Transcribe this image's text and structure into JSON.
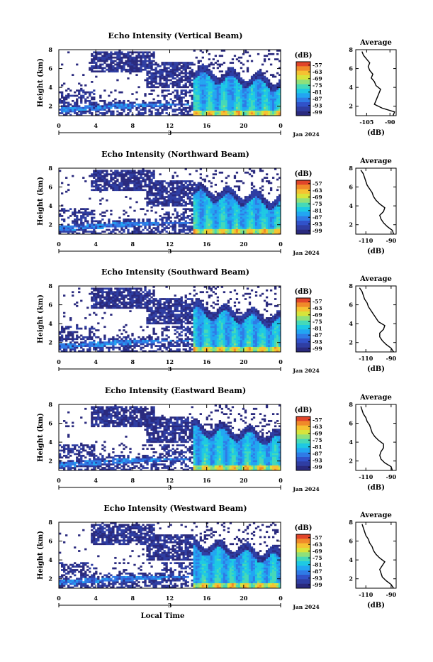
{
  "page": {
    "xlabel": "Local Time"
  },
  "colorbar": {
    "unit": "(dB)",
    "ticks": [
      "-57",
      "-63",
      "-69",
      "-75",
      "-81",
      "-87",
      "-93",
      "-99"
    ],
    "colors": [
      "#2a2a7e",
      "#2f3ea3",
      "#3152c9",
      "#2f7be6",
      "#22a6f2",
      "#1ec9e3",
      "#45d9b8",
      "#8fe07a",
      "#d7e43b",
      "#f5c232",
      "#f08a2a",
      "#e1452a"
    ]
  },
  "chart_data": [
    {
      "type": "heatmap",
      "title": "Echo Intensity (Vertical Beam)",
      "ylabel": "Height (km)",
      "xlim": [
        0,
        24
      ],
      "ylim": [
        1,
        8
      ],
      "xticks": [
        "0",
        "4",
        "8",
        "12",
        "16",
        "20",
        "0"
      ],
      "yticks": [
        "2",
        "4",
        "6",
        "8"
      ],
      "date_marker": "3",
      "date_label": "Jan 2024",
      "colorbar_range_db": [
        -99,
        -57
      ],
      "average": {
        "title": "Average",
        "xlabel": "(dB)",
        "xticks": [
          "-105",
          "-90"
        ],
        "xlim": [
          -112,
          -86
        ],
        "yticks": [
          "2",
          "4",
          "6",
          "8"
        ],
        "ylim": [
          1,
          8
        ],
        "height_km": [
          1.0,
          1.4,
          1.8,
          2.2,
          2.6,
          3.0,
          3.4,
          3.8,
          4.2,
          4.6,
          5.0,
          5.4,
          5.8,
          6.2,
          6.6,
          7.0,
          7.4,
          7.8
        ],
        "db": [
          -88,
          -87,
          -95,
          -100,
          -99,
          -98,
          -97,
          -96,
          -99,
          -100,
          -102,
          -101,
          -103,
          -104,
          -103,
          -105,
          -107,
          -108
        ]
      }
    },
    {
      "type": "heatmap",
      "title": "Echo Intensity (Northward Beam)",
      "ylabel": "Height (km)",
      "xlim": [
        0,
        24
      ],
      "ylim": [
        1,
        8
      ],
      "xticks": [
        "0",
        "4",
        "8",
        "12",
        "16",
        "20",
        "0"
      ],
      "yticks": [
        "2",
        "4",
        "6",
        "8"
      ],
      "date_marker": "3",
      "date_label": "Jan 2024",
      "colorbar_range_db": [
        -99,
        -57
      ],
      "average": {
        "title": "Average",
        "xlabel": "(dB)",
        "xticks": [
          "-110",
          "-90"
        ],
        "xlim": [
          -118,
          -86
        ],
        "yticks": [
          "2",
          "4",
          "6",
          "8"
        ],
        "ylim": [
          1,
          8
        ],
        "height_km": [
          1.0,
          1.4,
          1.8,
          2.2,
          2.6,
          3.0,
          3.4,
          3.8,
          4.2,
          4.6,
          5.0,
          5.4,
          5.8,
          6.2,
          6.6,
          7.0,
          7.4,
          7.8
        ],
        "db": [
          -88,
          -89,
          -93,
          -96,
          -98,
          -99,
          -96,
          -95,
          -99,
          -102,
          -104,
          -105,
          -107,
          -109,
          -110,
          -111,
          -112,
          -114
        ]
      }
    },
    {
      "type": "heatmap",
      "title": "Echo Intensity (Southward Beam)",
      "ylabel": "Height (km)",
      "xlim": [
        0,
        24
      ],
      "ylim": [
        1,
        8
      ],
      "xticks": [
        "0",
        "4",
        "8",
        "12",
        "16",
        "20",
        "0"
      ],
      "yticks": [
        "2",
        "4",
        "6",
        "8"
      ],
      "date_marker": "3",
      "date_label": "Jan 2024",
      "colorbar_range_db": [
        -99,
        -57
      ],
      "average": {
        "title": "Average",
        "xlabel": "(dB)",
        "xticks": [
          "-110",
          "-90"
        ],
        "xlim": [
          -118,
          -86
        ],
        "yticks": [
          "2",
          "4",
          "6",
          "8"
        ],
        "ylim": [
          1,
          8
        ],
        "height_km": [
          1.0,
          1.4,
          1.8,
          2.2,
          2.6,
          3.0,
          3.4,
          3.8,
          4.2,
          4.6,
          5.0,
          5.4,
          5.8,
          6.2,
          6.6,
          7.0,
          7.4,
          7.8
        ],
        "db": [
          -88,
          -90,
          -94,
          -97,
          -99,
          -99,
          -96,
          -95,
          -100,
          -102,
          -104,
          -106,
          -108,
          -109,
          -111,
          -112,
          -113,
          -115
        ]
      }
    },
    {
      "type": "heatmap",
      "title": "Echo Intensity (Eastward Beam)",
      "ylabel": "Height (km)",
      "xlim": [
        0,
        24
      ],
      "ylim": [
        1,
        8
      ],
      "xticks": [
        "0",
        "4",
        "8",
        "12",
        "16",
        "20",
        "0"
      ],
      "yticks": [
        "2",
        "4",
        "6",
        "8"
      ],
      "date_marker": "3",
      "date_label": "Jan 2024",
      "colorbar_range_db": [
        -99,
        -57
      ],
      "average": {
        "title": "Average",
        "xlabel": "(dB)",
        "xticks": [
          "-110",
          "-90"
        ],
        "xlim": [
          -118,
          -86
        ],
        "yticks": [
          "2",
          "4",
          "6",
          "8"
        ],
        "ylim": [
          1,
          8
        ],
        "height_km": [
          1.0,
          1.4,
          1.8,
          2.2,
          2.6,
          3.0,
          3.4,
          3.8,
          4.2,
          4.6,
          5.0,
          5.4,
          5.8,
          6.2,
          6.6,
          7.0,
          7.4,
          7.8
        ],
        "db": [
          -89,
          -90,
          -95,
          -98,
          -99,
          -98,
          -96,
          -96,
          -100,
          -103,
          -105,
          -106,
          -107,
          -109,
          -110,
          -112,
          -113,
          -114
        ]
      }
    },
    {
      "type": "heatmap",
      "title": "Echo Intensity (Westward Beam)",
      "ylabel": "Height (km)",
      "xlim": [
        0,
        24
      ],
      "ylim": [
        1,
        8
      ],
      "xticks": [
        "0",
        "4",
        "8",
        "12",
        "16",
        "20",
        "0"
      ],
      "yticks": [
        "2",
        "4",
        "6",
        "8"
      ],
      "date_marker": "3",
      "date_label": "Jan 2024",
      "colorbar_range_db": [
        -99,
        -57
      ],
      "average": {
        "title": "Average",
        "xlabel": "(dB)",
        "xticks": [
          "-110",
          "-90"
        ],
        "xlim": [
          -118,
          -86
        ],
        "yticks": [
          "2",
          "4",
          "6",
          "8"
        ],
        "ylim": [
          1,
          8
        ],
        "height_km": [
          1.0,
          1.4,
          1.8,
          2.2,
          2.6,
          3.0,
          3.4,
          3.8,
          4.2,
          4.6,
          5.0,
          5.4,
          5.8,
          6.2,
          6.6,
          7.0,
          7.4,
          7.8
        ],
        "db": [
          -88,
          -90,
          -94,
          -97,
          -98,
          -99,
          -97,
          -95,
          -99,
          -102,
          -104,
          -105,
          -107,
          -108,
          -110,
          -111,
          -112,
          -113
        ]
      }
    }
  ]
}
